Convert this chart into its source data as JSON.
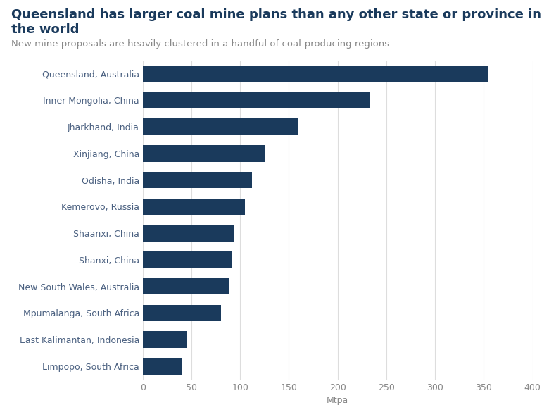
{
  "title": "Queensland has larger coal mine plans than any other state or province in the world",
  "subtitle": "New mine proposals are heavily clustered in a handful of coal-producing regions",
  "xlabel": "Mtpa",
  "categories": [
    "Queensland, Australia",
    "Inner Mongolia, China",
    "Jharkhand, India",
    "Xinjiang, China",
    "Odisha, India",
    "Kemerovo, Russia",
    "Shaanxi, China",
    "Shanxi, China",
    "New South Wales, Australia",
    "Mpumalanga, South Africa",
    "East Kalimantan, Indonesia",
    "Limpopo, South Africa"
  ],
  "values": [
    355,
    233,
    160,
    125,
    112,
    105,
    93,
    91,
    89,
    80,
    46,
    40
  ],
  "bar_color": "#1a3a5c",
  "xlim": [
    0,
    400
  ],
  "xticks": [
    0,
    50,
    100,
    150,
    200,
    250,
    300,
    350,
    400
  ],
  "background_color": "#ffffff",
  "title_fontsize": 13,
  "subtitle_fontsize": 9.5,
  "xlabel_fontsize": 9,
  "tick_label_fontsize": 9,
  "bar_height": 0.62,
  "grid_color": "#dddddd",
  "ytick_color": "#4a6080",
  "xtick_color": "#888888",
  "title_color": "#1a3a5c",
  "subtitle_color": "#888888",
  "xlabel_color": "#888888"
}
